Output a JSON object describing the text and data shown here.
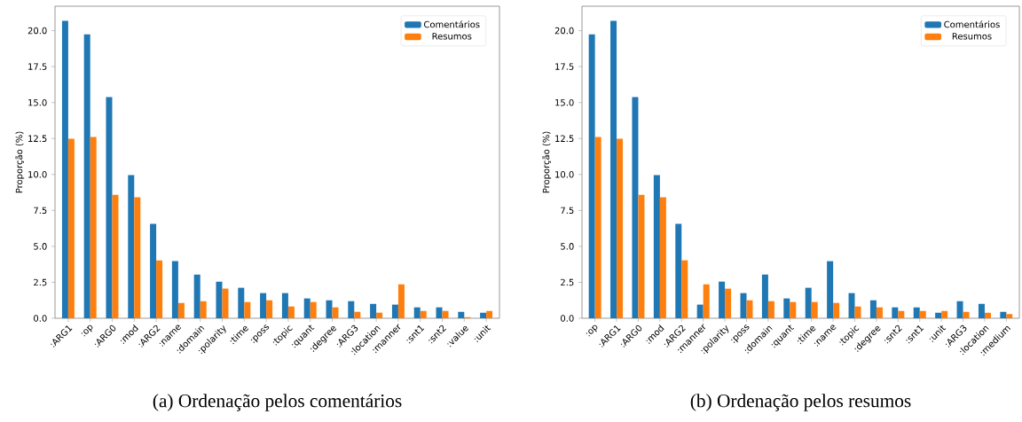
{
  "chart_data": [
    {
      "type": "bar",
      "title": "(a) Ordenação pelos comentários",
      "ylabel": "Proporção (%)",
      "categories": [
        ":ARG1",
        ":op",
        ":ARG0",
        ":mod",
        ":ARG2",
        ":name",
        ":domain",
        ":polarity",
        ":time",
        ":poss",
        ":topic",
        ":quant",
        ":degree",
        ":ARG3",
        ":location",
        ":manner",
        ":snt1",
        ":snt2",
        ":value",
        ":unit"
      ],
      "series": [
        {
          "name": "Comentários",
          "color": "#1f77b4",
          "values": [
            20.68,
            19.75,
            15.38,
            9.95,
            6.56,
            3.97,
            3.04,
            2.55,
            2.12,
            1.75,
            1.75,
            1.38,
            1.25,
            1.19,
            1.0,
            0.95,
            0.76,
            0.76,
            0.45,
            0.39
          ]
        },
        {
          "name": "Resumos",
          "color": "#ff7f0e",
          "values": [
            12.48,
            12.6,
            8.59,
            8.41,
            4.03,
            1.07,
            1.19,
            2.06,
            1.13,
            1.25,
            0.82,
            1.13,
            0.76,
            0.45,
            0.39,
            2.36,
            0.51,
            0.51,
            0.08,
            0.51
          ]
        }
      ],
      "ylim": [
        0,
        21.7
      ],
      "yticks": [
        {
          "value": 0,
          "label": "0.0"
        },
        {
          "value": 2.5,
          "label": "2.5"
        },
        {
          "value": 5,
          "label": "5.0"
        },
        {
          "value": 7.5,
          "label": "7.5"
        },
        {
          "value": 10,
          "label": "10.0"
        },
        {
          "value": 12.5,
          "label": "12.5"
        },
        {
          "value": 15,
          "label": "15.0"
        },
        {
          "value": 17.5,
          "label": "17.5"
        },
        {
          "value": 20,
          "label": "20.0"
        }
      ],
      "legend": "top right"
    },
    {
      "type": "bar",
      "title": "(b) Ordenação pelos resumos",
      "ylabel": "Proporção (%)",
      "categories": [
        ":op",
        ":ARG1",
        ":ARG0",
        ":mod",
        ":ARG2",
        ":manner",
        ":polarity",
        ":poss",
        ":domain",
        ":quant",
        ":time",
        ":name",
        ":topic",
        ":degree",
        ":snt2",
        ":snt1",
        ":unit",
        ":ARG3",
        ":location",
        ":medium"
      ],
      "series": [
        {
          "name": "Comentários",
          "color": "#1f77b4",
          "values": [
            19.75,
            20.68,
            15.38,
            9.95,
            6.56,
            0.95,
            2.55,
            1.75,
            3.04,
            1.38,
            2.12,
            3.97,
            1.75,
            1.25,
            0.76,
            0.76,
            0.39,
            1.19,
            1.0,
            0.45
          ]
        },
        {
          "name": "Resumos",
          "color": "#ff7f0e",
          "values": [
            12.6,
            12.48,
            8.59,
            8.41,
            4.03,
            2.36,
            2.06,
            1.25,
            1.19,
            1.13,
            1.13,
            1.07,
            0.82,
            0.76,
            0.51,
            0.51,
            0.51,
            0.45,
            0.39,
            0.29
          ]
        }
      ],
      "ylim": [
        0,
        21.7
      ],
      "yticks": [
        {
          "value": 0,
          "label": "0.0"
        },
        {
          "value": 2.5,
          "label": "2.5"
        },
        {
          "value": 5,
          "label": "5.0"
        },
        {
          "value": 7.5,
          "label": "7.5"
        },
        {
          "value": 10,
          "label": "10.0"
        },
        {
          "value": 12.5,
          "label": "12.5"
        },
        {
          "value": 15,
          "label": "15.0"
        },
        {
          "value": 17.5,
          "label": "17.5"
        },
        {
          "value": 20,
          "label": "20.0"
        }
      ],
      "legend": "top right"
    }
  ]
}
